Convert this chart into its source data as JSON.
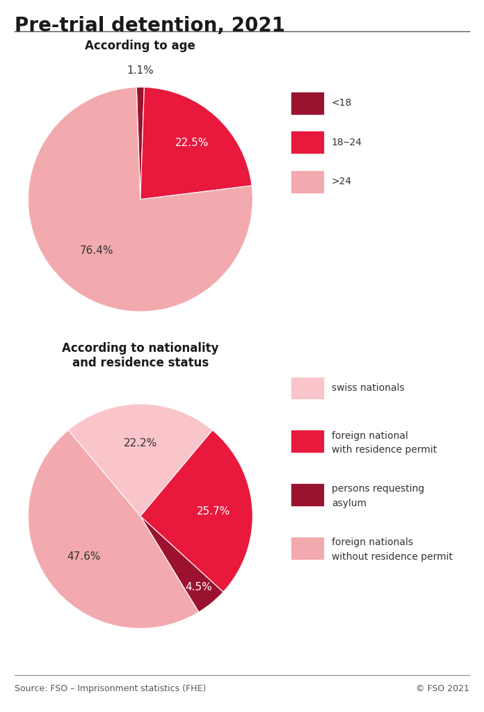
{
  "title": "Pre-trial detention, 2021",
  "source": "Source: FSO – Imprisonment statistics (FHE)",
  "copyright": "© FSO 2021",
  "pie1_title": "According to age",
  "pie1_values": [
    1.1,
    22.5,
    76.4
  ],
  "pie1_labels": [
    "1.1%",
    "22.5%",
    "76.4%"
  ],
  "pie1_colors": [
    "#9b1230",
    "#e8193c",
    "#f2aaae"
  ],
  "pie1_label_colors": [
    "#333333",
    "#ffffff",
    "#333333"
  ],
  "pie1_legend_labels": [
    "<18",
    "18‒24",
    ">24"
  ],
  "pie2_title": "According to nationality\nand residence status",
  "pie2_values": [
    22.2,
    25.7,
    4.5,
    47.6
  ],
  "pie2_labels": [
    "22.2%",
    "25.7%",
    "4.5%",
    "47.6%"
  ],
  "pie2_colors": [
    "#f9c5ca",
    "#e8193c",
    "#9b1230",
    "#f2aaae"
  ],
  "pie2_label_colors": [
    "#333333",
    "#ffffff",
    "#ffffff",
    "#333333"
  ],
  "pie2_legend_colors": [
    "#f9c5ca",
    "#e8193c",
    "#9b1230",
    "#f2aaae"
  ],
  "pie2_legend_labels": [
    "swiss nationals",
    "foreign national\nwith residence permit",
    "persons requesting\nasylum",
    "foreign nationals\nwithout residence permit"
  ],
  "background_color": "#ffffff",
  "title_fontsize": 20,
  "subtitle_fontsize": 12,
  "label_fontsize": 11,
  "legend_fontsize": 10,
  "source_fontsize": 9
}
